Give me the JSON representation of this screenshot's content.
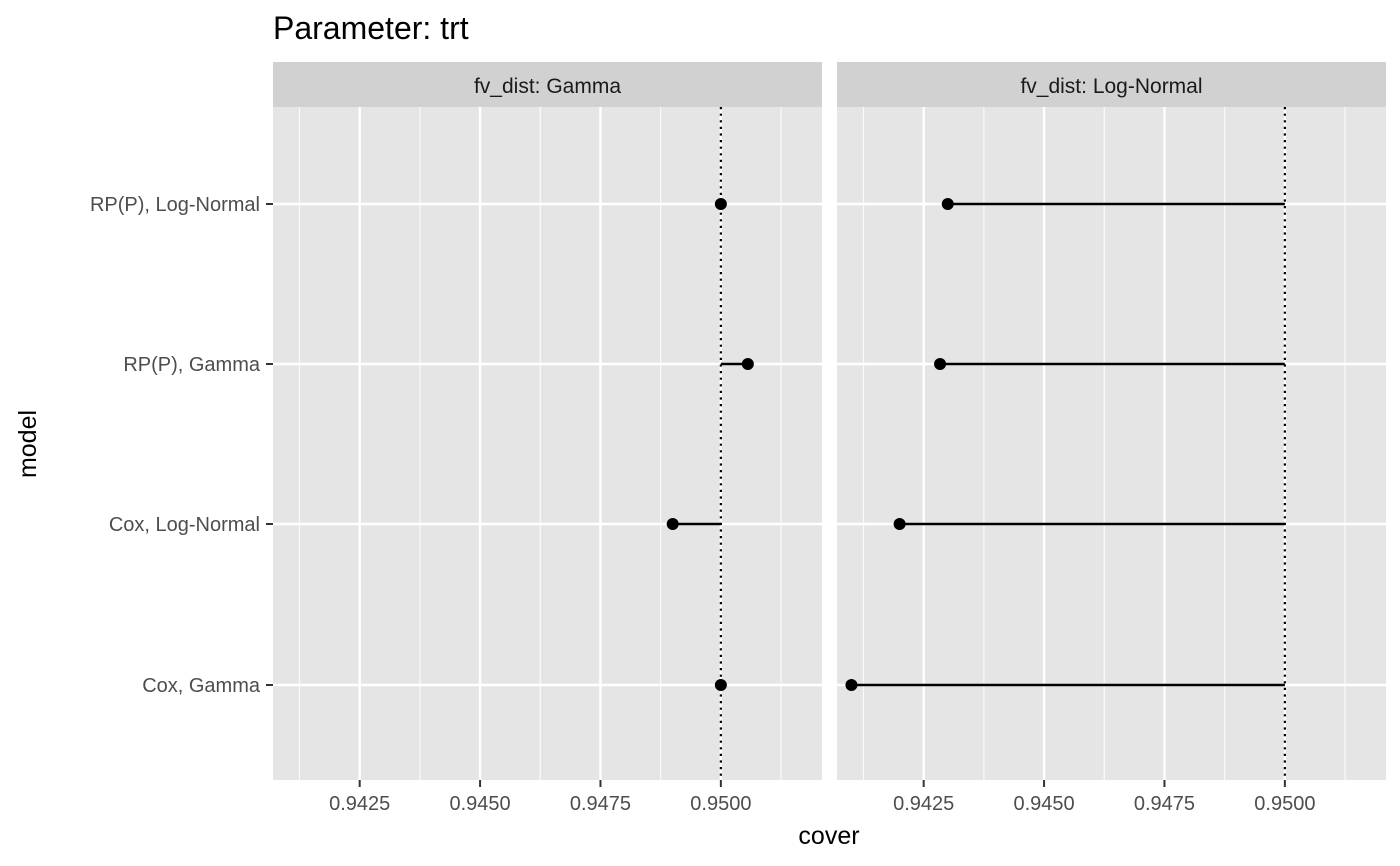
{
  "chart_data": {
    "type": "scatter",
    "title": "Parameter: trt",
    "xlabel": "cover",
    "ylabel": "model",
    "categories": [
      "RP(P), Log-Normal",
      "RP(P), Gamma",
      "Cox, Log-Normal",
      "Cox, Gamma"
    ],
    "xlim": [
      0.9407,
      0.9521
    ],
    "x_ticks": [
      "0.9425",
      "0.9450",
      "0.9475",
      "0.9500"
    ],
    "x_tick_values": [
      0.9425,
      0.945,
      0.9475,
      0.95
    ],
    "reference_line": 0.95,
    "grid": true,
    "legend": "none",
    "colors": {
      "panel_bg": "#e5e5e5",
      "strip_bg": "#d1d1d1",
      "grid": "#ffffff",
      "mark": "#000000"
    },
    "panels": [
      {
        "strip": "fv_dist: Gamma",
        "values": [
          0.95,
          0.95056,
          0.949,
          0.95
        ]
      },
      {
        "strip": "fv_dist: Log-Normal",
        "values": [
          0.943,
          0.94284,
          0.942,
          0.941
        ]
      }
    ]
  }
}
